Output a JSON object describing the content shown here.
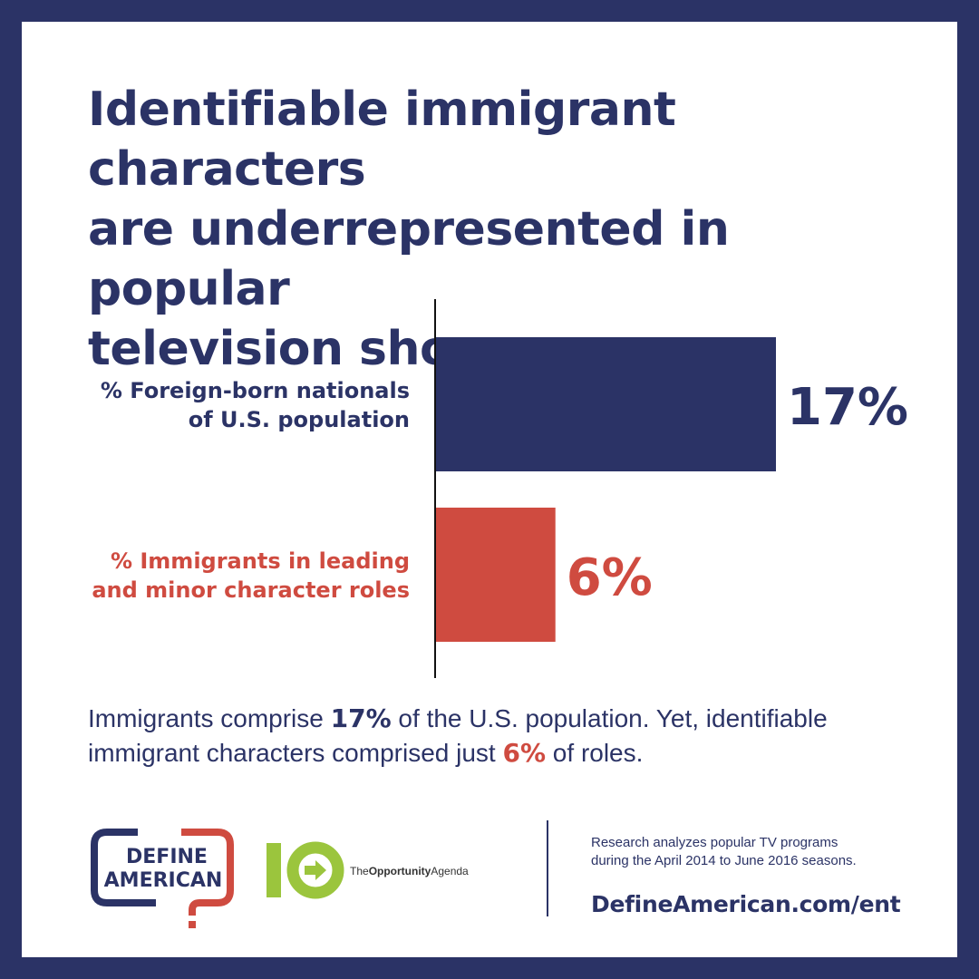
{
  "colors": {
    "navy": "#2b3366",
    "red": "#cf4b40",
    "green": "#9bc53d",
    "white": "#ffffff"
  },
  "title": {
    "lines": [
      "Identifiable immigrant characters",
      "are underrepresented in popular",
      "television shows."
    ]
  },
  "chart_data": {
    "type": "bar",
    "orientation": "horizontal",
    "title": "Identifiable immigrant characters are underrepresented in popular television shows.",
    "xlim": [
      0,
      17
    ],
    "categories": [
      {
        "label_lines": [
          "% Foreign-born nationals",
          "of U.S. population"
        ],
        "value": 17,
        "value_label": "17%",
        "color": "#2b3366"
      },
      {
        "label_lines": [
          "% Immigrants in leading",
          "and minor character roles"
        ],
        "value": 6,
        "value_label": "6%",
        "color": "#cf4b40"
      }
    ],
    "grid": false,
    "legend": "none"
  },
  "summary": {
    "p1": "Immigrants comprise ",
    "v1": "17%",
    "p2": " of the U.S. population. Yet, identifiable immigrant characters comprised just ",
    "v2": "6%",
    "p3": " of roles."
  },
  "logos": {
    "define_american": {
      "line1": "DEFINE",
      "line2": "AMERICAN"
    },
    "opportunity_agenda": {
      "number": "10",
      "prefix": "The",
      "bold": "Opportunity",
      "suffix": "Agenda"
    }
  },
  "footer": {
    "note_lines": [
      "Research analyzes popular TV programs",
      "during the April 2014 to June 2016 seasons."
    ],
    "url": "DefineAmerican.com/ent"
  }
}
